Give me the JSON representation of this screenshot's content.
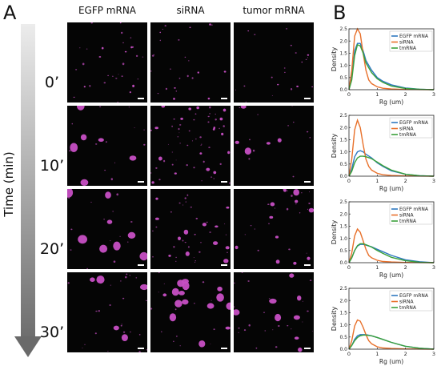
{
  "figure": {
    "panel_a_letter": "A",
    "panel_b_letter": "B",
    "time_axis_label": "Time (min)",
    "columns": [
      "EGFP mRNA",
      "siRNA",
      "tumor mRNA"
    ],
    "time_points": [
      "0’",
      "10’",
      "20’",
      "30’"
    ],
    "blob_color": "#c74fc4"
  },
  "chart_data": [
    {
      "type": "line",
      "xlabel": "Rg (um)",
      "ylabel": "Density",
      "xlim": [
        0,
        3
      ],
      "ylim": [
        0,
        2.5
      ],
      "xticks": [
        0,
        1,
        2,
        3
      ],
      "yticks": [
        0.0,
        0.5,
        1.0,
        1.5,
        2.0,
        2.5
      ],
      "legend_position": "top-right",
      "series": [
        {
          "name": "EGFP mRNA",
          "color": "#2e78c0",
          "x": [
            0,
            0.1,
            0.2,
            0.3,
            0.4,
            0.5,
            0.6,
            0.8,
            1.0,
            1.2,
            1.5,
            2.0,
            2.5,
            3.0
          ],
          "y": [
            0,
            0.5,
            1.6,
            1.9,
            1.9,
            1.6,
            1.2,
            0.8,
            0.5,
            0.35,
            0.2,
            0.07,
            0.02,
            0.0
          ]
        },
        {
          "name": "siRNA",
          "color": "#e8702a",
          "x": [
            0,
            0.1,
            0.2,
            0.3,
            0.4,
            0.5,
            0.6,
            0.7,
            0.8,
            1.0,
            1.2,
            1.5,
            2.0,
            3.0
          ],
          "y": [
            0,
            0.8,
            2.2,
            2.5,
            2.3,
            1.5,
            0.8,
            0.4,
            0.25,
            0.12,
            0.06,
            0.03,
            0.01,
            0.0
          ]
        },
        {
          "name": "tmRNA",
          "color": "#3aa03a",
          "x": [
            0,
            0.1,
            0.2,
            0.3,
            0.4,
            0.5,
            0.6,
            0.8,
            1.0,
            1.2,
            1.5,
            2.0,
            2.5,
            3.0
          ],
          "y": [
            0,
            0.4,
            1.4,
            1.85,
            1.8,
            1.5,
            1.1,
            0.7,
            0.45,
            0.3,
            0.15,
            0.05,
            0.02,
            0.0
          ]
        }
      ]
    },
    {
      "type": "line",
      "xlabel": "Rg (um)",
      "ylabel": "Density",
      "xlim": [
        0,
        3
      ],
      "ylim": [
        0,
        2.5
      ],
      "xticks": [
        0,
        1,
        2,
        3
      ],
      "yticks": [
        0.0,
        0.5,
        1.0,
        1.5,
        2.0,
        2.5
      ],
      "legend_position": "top-right",
      "series": [
        {
          "name": "EGFP mRNA",
          "color": "#2e78c0",
          "x": [
            0,
            0.1,
            0.2,
            0.3,
            0.4,
            0.5,
            0.6,
            0.8,
            1.0,
            1.2,
            1.5,
            2.0,
            2.5,
            3.0
          ],
          "y": [
            0,
            0.3,
            0.8,
            1.0,
            1.05,
            1.0,
            0.9,
            0.75,
            0.55,
            0.4,
            0.22,
            0.08,
            0.02,
            0.0
          ]
        },
        {
          "name": "siRNA",
          "color": "#e8702a",
          "x": [
            0,
            0.1,
            0.2,
            0.3,
            0.4,
            0.5,
            0.6,
            0.7,
            0.8,
            1.0,
            1.2,
            1.5,
            2.0,
            3.0
          ],
          "y": [
            0,
            0.7,
            1.9,
            2.3,
            2.0,
            1.3,
            0.7,
            0.4,
            0.25,
            0.12,
            0.06,
            0.03,
            0.01,
            0.0
          ]
        },
        {
          "name": "tmRNA",
          "color": "#3aa03a",
          "x": [
            0,
            0.1,
            0.2,
            0.3,
            0.4,
            0.5,
            0.6,
            0.8,
            1.0,
            1.2,
            1.5,
            2.0,
            2.5,
            3.0
          ],
          "y": [
            0,
            0.2,
            0.55,
            0.75,
            0.82,
            0.82,
            0.8,
            0.72,
            0.58,
            0.43,
            0.25,
            0.08,
            0.02,
            0.0
          ]
        }
      ]
    },
    {
      "type": "line",
      "xlabel": "Rg (um)",
      "ylabel": "Density",
      "xlim": [
        0,
        3
      ],
      "ylim": [
        0,
        2.5
      ],
      "xticks": [
        0,
        1,
        2,
        3
      ],
      "yticks": [
        0.0,
        0.5,
        1.0,
        1.5,
        2.0,
        2.5
      ],
      "legend_position": "top-right",
      "series": [
        {
          "name": "EGFP mRNA",
          "color": "#2e78c0",
          "x": [
            0,
            0.1,
            0.2,
            0.3,
            0.4,
            0.5,
            0.6,
            0.8,
            1.0,
            1.2,
            1.5,
            2.0,
            2.5,
            3.0
          ],
          "y": [
            0,
            0.2,
            0.5,
            0.68,
            0.75,
            0.75,
            0.72,
            0.65,
            0.55,
            0.45,
            0.3,
            0.12,
            0.04,
            0.0
          ]
        },
        {
          "name": "siRNA",
          "color": "#e8702a",
          "x": [
            0,
            0.1,
            0.2,
            0.3,
            0.4,
            0.5,
            0.6,
            0.7,
            0.8,
            1.0,
            1.2,
            1.5,
            2.0,
            3.0
          ],
          "y": [
            0,
            0.4,
            1.1,
            1.38,
            1.25,
            0.9,
            0.55,
            0.3,
            0.2,
            0.1,
            0.05,
            0.03,
            0.01,
            0.0
          ]
        },
        {
          "name": "tmRNA",
          "color": "#3aa03a",
          "x": [
            0,
            0.1,
            0.2,
            0.3,
            0.4,
            0.5,
            0.6,
            0.8,
            1.0,
            1.2,
            1.5,
            2.0,
            2.5,
            3.0
          ],
          "y": [
            0,
            0.2,
            0.5,
            0.7,
            0.78,
            0.78,
            0.74,
            0.64,
            0.5,
            0.38,
            0.22,
            0.08,
            0.02,
            0.0
          ]
        }
      ]
    },
    {
      "type": "line",
      "xlabel": "Rg (um)",
      "ylabel": "Density",
      "xlim": [
        0,
        3
      ],
      "ylim": [
        0,
        2.5
      ],
      "xticks": [
        0,
        1,
        2,
        3
      ],
      "yticks": [
        0.0,
        0.5,
        1.0,
        1.5,
        2.0,
        2.5
      ],
      "legend_position": "top-right",
      "series": [
        {
          "name": "EGFP mRNA",
          "color": "#2e78c0",
          "x": [
            0,
            0.1,
            0.2,
            0.3,
            0.4,
            0.5,
            0.6,
            0.8,
            1.0,
            1.2,
            1.5,
            2.0,
            2.5,
            3.0
          ],
          "y": [
            0,
            0.15,
            0.4,
            0.55,
            0.6,
            0.6,
            0.6,
            0.55,
            0.48,
            0.4,
            0.28,
            0.12,
            0.04,
            0.0
          ]
        },
        {
          "name": "siRNA",
          "color": "#e8702a",
          "x": [
            0,
            0.1,
            0.2,
            0.3,
            0.4,
            0.5,
            0.6,
            0.7,
            0.8,
            1.0,
            1.2,
            1.5,
            2.0,
            3.0
          ],
          "y": [
            0,
            0.35,
            0.95,
            1.2,
            1.15,
            0.9,
            0.6,
            0.35,
            0.22,
            0.1,
            0.05,
            0.03,
            0.01,
            0.0
          ]
        },
        {
          "name": "tmRNA",
          "color": "#3aa03a",
          "x": [
            0,
            0.1,
            0.2,
            0.3,
            0.4,
            0.5,
            0.6,
            0.8,
            1.0,
            1.2,
            1.5,
            2.0,
            2.5,
            3.0
          ],
          "y": [
            0,
            0.15,
            0.35,
            0.48,
            0.55,
            0.58,
            0.58,
            0.55,
            0.48,
            0.4,
            0.28,
            0.12,
            0.04,
            0.0
          ]
        }
      ]
    }
  ]
}
